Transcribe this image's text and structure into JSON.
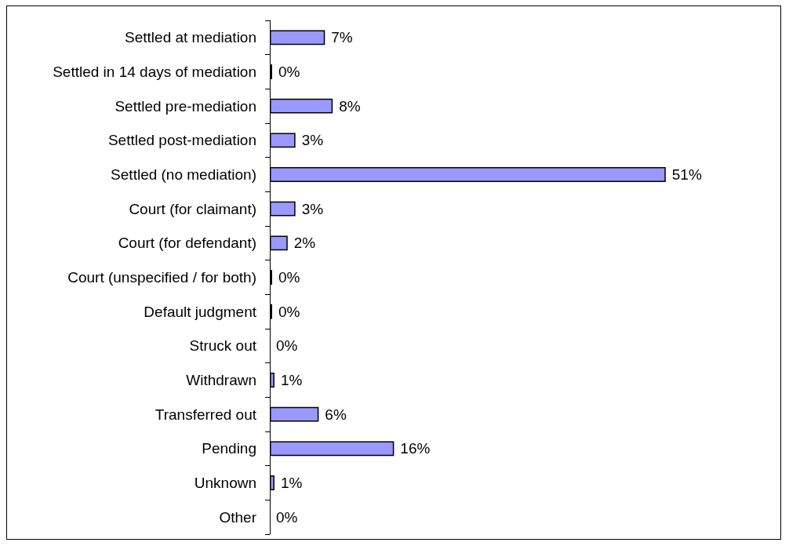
{
  "chart_data": {
    "type": "bar",
    "orientation": "horizontal",
    "categories": [
      "Settled at mediation",
      "Settled in 14 days of mediation",
      "Settled pre-mediation",
      "Settled post-mediation",
      "Settled (no mediation)",
      "Court (for claimant)",
      "Court (for defendant)",
      "Court (unspecified / for both)",
      "Default judgment",
      "Struck out",
      "Withdrawn",
      "Transferred out",
      "Pending",
      "Unknown",
      "Other"
    ],
    "values": [
      7.1,
      0.3,
      8.1,
      3.3,
      51,
      3.3,
      2.3,
      0.3,
      0.3,
      0,
      0.6,
      6.3,
      16,
      0.6,
      0
    ],
    "value_labels": [
      "7%",
      "0%",
      "8%",
      "3%",
      "51%",
      "3%",
      "2%",
      "0%",
      "0%",
      "0%",
      "1%",
      "6%",
      "16%",
      "1%",
      "0%"
    ],
    "color": "#9999ff",
    "tick_labels": "y"
  }
}
